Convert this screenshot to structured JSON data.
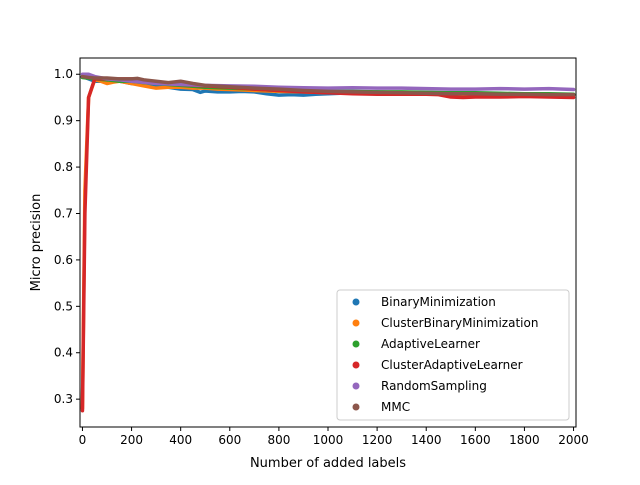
{
  "chart_data": {
    "type": "line",
    "title": "",
    "xlabel": "Number of added labels",
    "ylabel": "Micro precision",
    "xlim": [
      -10,
      2010
    ],
    "ylim": [
      0.24,
      1.035
    ],
    "xticks": [
      0,
      200,
      400,
      600,
      800,
      1000,
      1200,
      1400,
      1600,
      1800,
      2000
    ],
    "yticks": [
      0.3,
      0.4,
      0.5,
      0.6,
      0.7,
      0.8,
      0.9,
      1.0
    ],
    "ytick_labels": [
      "0.3",
      "0.4",
      "0.5",
      "0.6",
      "0.7",
      "0.8",
      "0.9",
      "1.0"
    ],
    "grid": false,
    "legend_position": "lower-right",
    "series": [
      {
        "name": "BinaryMinimization",
        "color": "#1f77b4",
        "x": [
          0,
          25,
          50,
          100,
          150,
          200,
          250,
          300,
          350,
          400,
          450,
          480,
          500,
          550,
          600,
          650,
          700,
          750,
          800,
          850,
          900,
          950,
          1000,
          1100,
          1200,
          1300,
          1400,
          1500,
          1600,
          1700,
          1800,
          1900,
          2000
        ],
        "y": [
          0.995,
          0.99,
          0.985,
          0.985,
          0.985,
          0.98,
          0.978,
          0.975,
          0.972,
          0.968,
          0.967,
          0.961,
          0.964,
          0.962,
          0.962,
          0.963,
          0.962,
          0.958,
          0.955,
          0.956,
          0.955,
          0.957,
          0.958,
          0.96,
          0.962,
          0.96,
          0.96,
          0.958,
          0.958,
          0.957,
          0.956,
          0.955,
          0.955
        ]
      },
      {
        "name": "ClusterBinaryMinimization",
        "color": "#ff7f0e",
        "x": [
          0,
          10,
          25,
          50,
          75,
          100,
          125,
          150,
          200,
          250,
          300,
          350,
          400,
          450,
          500,
          550,
          600,
          700,
          800,
          900,
          1000,
          1100,
          1200,
          1300,
          1400,
          1500,
          1600,
          1700,
          1800,
          1900,
          2000
        ],
        "y": [
          0.28,
          0.75,
          0.95,
          0.988,
          0.985,
          0.98,
          0.983,
          0.985,
          0.98,
          0.975,
          0.97,
          0.972,
          0.972,
          0.97,
          0.97,
          0.968,
          0.967,
          0.965,
          0.963,
          0.962,
          0.96,
          0.96,
          0.96,
          0.958,
          0.958,
          0.957,
          0.956,
          0.955,
          0.955,
          0.955,
          0.955
        ]
      },
      {
        "name": "AdaptiveLearner",
        "color": "#2ca02c",
        "x": [
          0,
          50,
          100,
          150,
          200,
          250,
          300,
          350,
          400,
          450,
          500,
          600,
          700,
          800,
          900,
          1000,
          1100,
          1200,
          1300,
          1400,
          1500,
          1600,
          1700,
          1800,
          1900,
          2000
        ],
        "y": [
          0.993,
          0.99,
          0.988,
          0.985,
          0.985,
          0.982,
          0.98,
          0.978,
          0.976,
          0.974,
          0.972,
          0.97,
          0.968,
          0.965,
          0.965,
          0.963,
          0.963,
          0.962,
          0.962,
          0.961,
          0.96,
          0.96,
          0.959,
          0.958,
          0.958,
          0.957
        ]
      },
      {
        "name": "ClusterAdaptiveLearner",
        "color": "#d62728",
        "x": [
          0,
          10,
          25,
          50,
          100,
          150,
          200,
          250,
          300,
          400,
          500,
          600,
          700,
          800,
          900,
          1000,
          1100,
          1200,
          1300,
          1400,
          1450,
          1500,
          1550,
          1600,
          1700,
          1800,
          1900,
          2000
        ],
        "y": [
          0.275,
          0.7,
          0.95,
          0.99,
          0.99,
          0.99,
          0.99,
          0.985,
          0.982,
          0.978,
          0.975,
          0.972,
          0.968,
          0.965,
          0.962,
          0.96,
          0.958,
          0.957,
          0.957,
          0.957,
          0.956,
          0.951,
          0.95,
          0.951,
          0.951,
          0.952,
          0.951,
          0.95
        ]
      },
      {
        "name": "RandomSampling",
        "color": "#9467bd",
        "x": [
          0,
          25,
          50,
          100,
          150,
          200,
          300,
          400,
          500,
          600,
          700,
          800,
          900,
          1000,
          1100,
          1200,
          1300,
          1400,
          1500,
          1600,
          1700,
          1800,
          1900,
          2000
        ],
        "y": [
          1.0,
          1.0,
          0.995,
          0.99,
          0.988,
          0.985,
          0.98,
          0.978,
          0.976,
          0.975,
          0.974,
          0.972,
          0.971,
          0.97,
          0.971,
          0.97,
          0.97,
          0.969,
          0.968,
          0.968,
          0.969,
          0.968,
          0.969,
          0.967
        ]
      },
      {
        "name": "MMC",
        "color": "#8c564b",
        "x": [
          0,
          25,
          50,
          100,
          150,
          200,
          225,
          250,
          300,
          350,
          400,
          450,
          500,
          600,
          700,
          800,
          900,
          1000,
          1100,
          1200,
          1300,
          1400,
          1500,
          1600,
          1700,
          1800,
          1900,
          2000
        ],
        "y": [
          0.995,
          0.993,
          0.992,
          0.992,
          0.99,
          0.99,
          0.991,
          0.988,
          0.985,
          0.982,
          0.985,
          0.98,
          0.976,
          0.973,
          0.97,
          0.968,
          0.965,
          0.963,
          0.962,
          0.961,
          0.96,
          0.959,
          0.958,
          0.958,
          0.957,
          0.957,
          0.956,
          0.956
        ]
      }
    ]
  }
}
